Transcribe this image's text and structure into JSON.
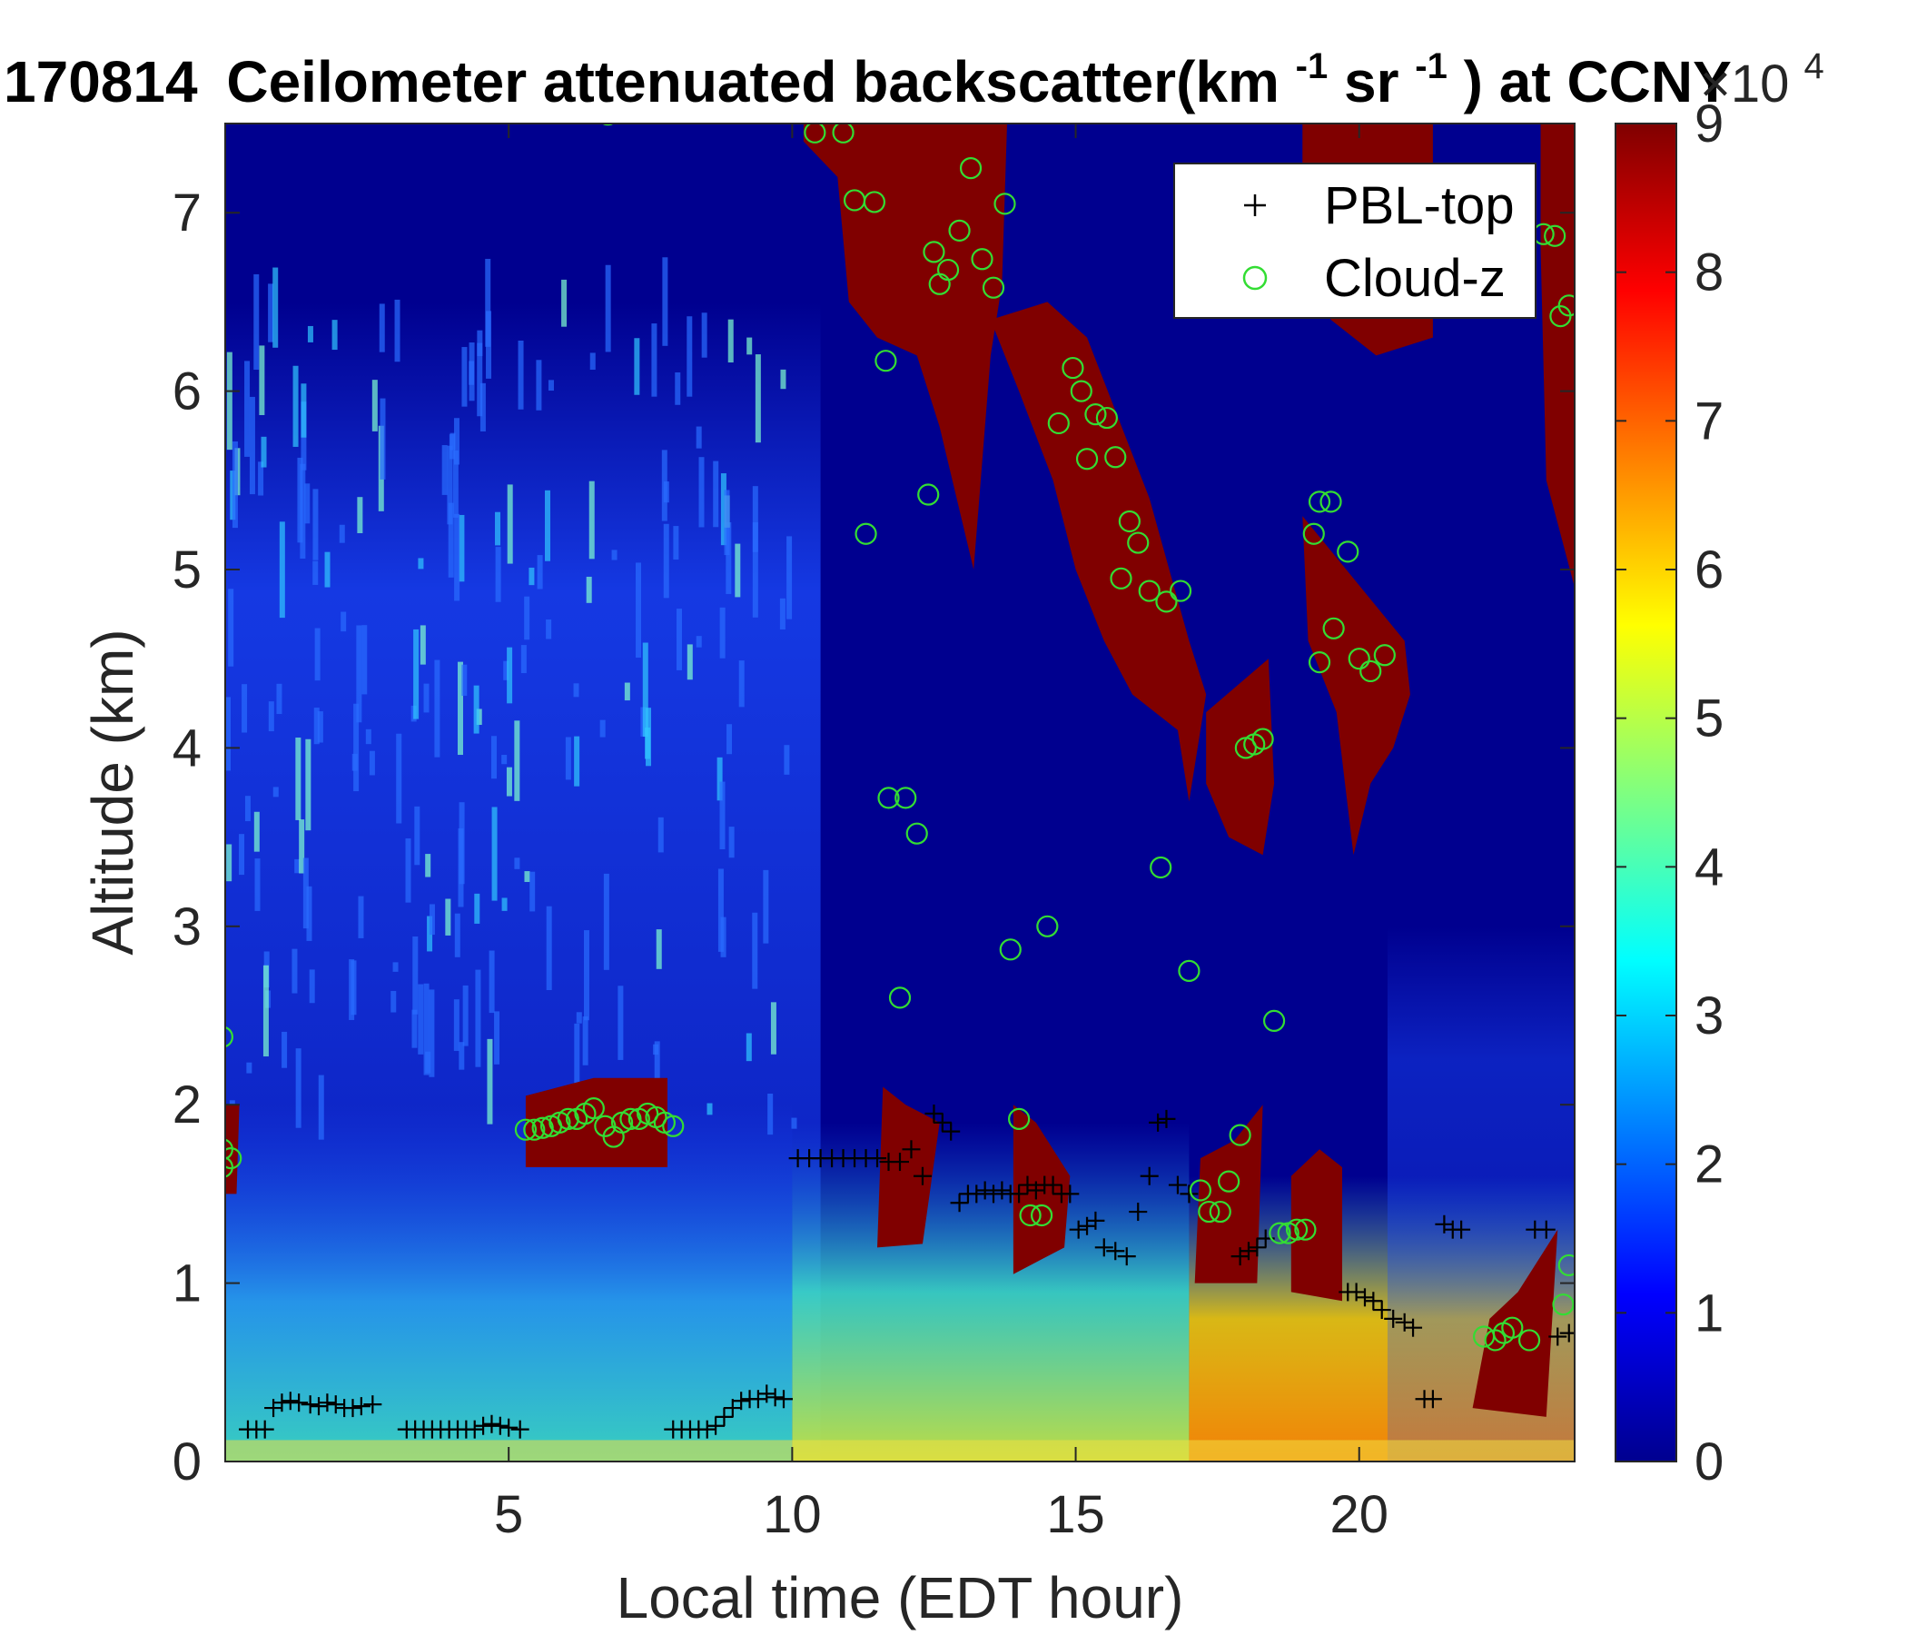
{
  "chart_data": {
    "type": "heatmap",
    "title": {
      "date": "170814",
      "text_main": "Ceilometer attenuated backscatter(km",
      "sup1": "-1",
      "text_mid": "sr",
      "sup2": "-1",
      "text_end": ") at CCNY"
    },
    "xlabel": "Local time (EDT hour)",
    "ylabel": "Altitude (km)",
    "xlim": [
      0,
      23.8
    ],
    "ylim": [
      0,
      7.5
    ],
    "x_ticks": [
      5,
      10,
      15,
      20
    ],
    "y_ticks": [
      0,
      1,
      2,
      3,
      4,
      5,
      6,
      7
    ],
    "colorbar": {
      "range": [
        0,
        9
      ],
      "ticks": [
        0,
        1,
        2,
        3,
        4,
        5,
        6,
        7,
        8,
        9
      ],
      "multiplier_base": "×10",
      "multiplier_exp": "4",
      "colormap": "jet"
    },
    "colors": {
      "background": "#00008f",
      "saturated": "#800000",
      "pbl_marker": "#000000",
      "cloud_marker": "#33dd33"
    },
    "legend": {
      "placement": "top-right",
      "entries": [
        {
          "label": "PBL-top",
          "marker": "+"
        },
        {
          "label": "Cloud-z",
          "marker": "o"
        }
      ]
    },
    "series": [
      {
        "name": "PBL-top",
        "marker": "plus",
        "points": [
          [
            0.4,
            0.18
          ],
          [
            0.55,
            0.18
          ],
          [
            0.7,
            0.18
          ],
          [
            0.85,
            0.3
          ],
          [
            1.0,
            0.33
          ],
          [
            1.15,
            0.34
          ],
          [
            1.3,
            0.33
          ],
          [
            1.5,
            0.32
          ],
          [
            1.65,
            0.31
          ],
          [
            1.8,
            0.33
          ],
          [
            1.95,
            0.32
          ],
          [
            2.1,
            0.3
          ],
          [
            2.25,
            0.3
          ],
          [
            2.4,
            0.31
          ],
          [
            2.6,
            0.32
          ],
          [
            3.2,
            0.18
          ],
          [
            3.35,
            0.18
          ],
          [
            3.5,
            0.18
          ],
          [
            3.65,
            0.18
          ],
          [
            3.8,
            0.18
          ],
          [
            3.95,
            0.18
          ],
          [
            4.1,
            0.18
          ],
          [
            4.25,
            0.18
          ],
          [
            4.4,
            0.18
          ],
          [
            4.55,
            0.2
          ],
          [
            4.7,
            0.21
          ],
          [
            4.85,
            0.2
          ],
          [
            5.0,
            0.19
          ],
          [
            5.2,
            0.18
          ],
          [
            7.9,
            0.18
          ],
          [
            8.05,
            0.18
          ],
          [
            8.2,
            0.18
          ],
          [
            8.35,
            0.18
          ],
          [
            8.5,
            0.18
          ],
          [
            8.65,
            0.2
          ],
          [
            8.8,
            0.25
          ],
          [
            8.95,
            0.3
          ],
          [
            9.1,
            0.34
          ],
          [
            9.25,
            0.35
          ],
          [
            9.4,
            0.35
          ],
          [
            9.55,
            0.38
          ],
          [
            9.7,
            0.36
          ],
          [
            9.85,
            0.35
          ],
          [
            10.1,
            1.7
          ],
          [
            10.3,
            1.7
          ],
          [
            10.5,
            1.7
          ],
          [
            10.7,
            1.7
          ],
          [
            10.9,
            1.7
          ],
          [
            11.1,
            1.7
          ],
          [
            11.3,
            1.7
          ],
          [
            11.5,
            1.7
          ],
          [
            11.7,
            1.68
          ],
          [
            11.9,
            1.68
          ],
          [
            12.1,
            1.75
          ],
          [
            12.3,
            1.6
          ],
          [
            12.5,
            1.95
          ],
          [
            12.65,
            1.9
          ],
          [
            12.8,
            1.85
          ],
          [
            12.95,
            1.45
          ],
          [
            13.1,
            1.5
          ],
          [
            13.25,
            1.5
          ],
          [
            13.4,
            1.52
          ],
          [
            13.55,
            1.5
          ],
          [
            13.7,
            1.52
          ],
          [
            13.85,
            1.5
          ],
          [
            14.0,
            1.5
          ],
          [
            14.15,
            1.55
          ],
          [
            14.3,
            1.52
          ],
          [
            14.45,
            1.55
          ],
          [
            14.6,
            1.55
          ],
          [
            14.75,
            1.5
          ],
          [
            14.9,
            1.5
          ],
          [
            15.05,
            1.3
          ],
          [
            15.2,
            1.32
          ],
          [
            15.35,
            1.35
          ],
          [
            15.5,
            1.2
          ],
          [
            15.7,
            1.18
          ],
          [
            15.9,
            1.15
          ],
          [
            16.1,
            1.4
          ],
          [
            16.3,
            1.6
          ],
          [
            16.45,
            1.9
          ],
          [
            16.6,
            1.92
          ],
          [
            16.8,
            1.55
          ],
          [
            17.0,
            1.5
          ],
          [
            17.9,
            1.15
          ],
          [
            18.05,
            1.18
          ],
          [
            18.2,
            1.2
          ],
          [
            18.35,
            1.25
          ],
          [
            19.8,
            0.95
          ],
          [
            19.95,
            0.95
          ],
          [
            20.1,
            0.92
          ],
          [
            20.25,
            0.9
          ],
          [
            20.4,
            0.85
          ],
          [
            20.6,
            0.8
          ],
          [
            20.8,
            0.78
          ],
          [
            20.95,
            0.75
          ],
          [
            21.15,
            0.35
          ],
          [
            21.3,
            0.35
          ],
          [
            21.5,
            1.33
          ],
          [
            21.65,
            1.3
          ],
          [
            21.8,
            1.3
          ],
          [
            23.1,
            1.3
          ],
          [
            23.3,
            1.3
          ],
          [
            23.5,
            0.7
          ],
          [
            23.7,
            0.72
          ]
        ]
      },
      {
        "name": "Cloud-z",
        "marker": "circle",
        "points": [
          [
            -0.05,
            1.75
          ],
          [
            0.1,
            1.7
          ],
          [
            -0.05,
            1.65
          ],
          [
            -0.05,
            2.38
          ],
          [
            5.3,
            1.86
          ],
          [
            5.45,
            1.86
          ],
          [
            5.6,
            1.87
          ],
          [
            5.75,
            1.88
          ],
          [
            5.9,
            1.9
          ],
          [
            6.05,
            1.92
          ],
          [
            6.2,
            1.92
          ],
          [
            6.35,
            1.95
          ],
          [
            6.5,
            1.98
          ],
          [
            6.7,
            1.88
          ],
          [
            6.85,
            1.82
          ],
          [
            7.0,
            1.9
          ],
          [
            7.15,
            1.92
          ],
          [
            7.3,
            1.92
          ],
          [
            7.45,
            1.95
          ],
          [
            7.6,
            1.93
          ],
          [
            7.75,
            1.9
          ],
          [
            7.9,
            1.88
          ],
          [
            6.75,
            7.55
          ],
          [
            10.4,
            7.45
          ],
          [
            10.9,
            7.45
          ],
          [
            11.1,
            7.07
          ],
          [
            11.45,
            7.06
          ],
          [
            11.65,
            6.17
          ],
          [
            12.5,
            6.78
          ],
          [
            12.75,
            6.68
          ],
          [
            12.95,
            6.9
          ],
          [
            13.15,
            7.25
          ],
          [
            13.35,
            6.74
          ],
          [
            13.55,
            6.58
          ],
          [
            13.75,
            7.05
          ],
          [
            12.6,
            6.6
          ],
          [
            11.3,
            5.2
          ],
          [
            12.4,
            5.42
          ],
          [
            12.0,
            3.72
          ],
          [
            11.7,
            3.72
          ],
          [
            12.2,
            3.52
          ],
          [
            11.9,
            2.6
          ],
          [
            13.85,
            2.87
          ],
          [
            14.5,
            3.0
          ],
          [
            14.0,
            1.92
          ],
          [
            14.2,
            1.38
          ],
          [
            14.4,
            1.38
          ],
          [
            14.7,
            5.82
          ],
          [
            14.95,
            6.13
          ],
          [
            15.1,
            6.0
          ],
          [
            15.35,
            5.87
          ],
          [
            15.55,
            5.85
          ],
          [
            15.2,
            5.62
          ],
          [
            15.7,
            5.63
          ],
          [
            15.95,
            5.27
          ],
          [
            16.1,
            5.15
          ],
          [
            15.8,
            4.95
          ],
          [
            16.3,
            4.88
          ],
          [
            16.6,
            4.82
          ],
          [
            16.85,
            4.88
          ],
          [
            16.5,
            3.33
          ],
          [
            17.0,
            2.75
          ],
          [
            17.2,
            1.52
          ],
          [
            17.35,
            1.4
          ],
          [
            17.55,
            1.4
          ],
          [
            17.7,
            1.57
          ],
          [
            17.9,
            1.83
          ],
          [
            18.0,
            4.0
          ],
          [
            18.15,
            4.02
          ],
          [
            18.3,
            4.05
          ],
          [
            18.5,
            2.47
          ],
          [
            18.6,
            1.28
          ],
          [
            18.75,
            1.28
          ],
          [
            18.9,
            1.3
          ],
          [
            19.05,
            1.3
          ],
          [
            19.3,
            5.38
          ],
          [
            19.5,
            5.38
          ],
          [
            19.2,
            5.2
          ],
          [
            19.8,
            5.1
          ],
          [
            19.55,
            4.67
          ],
          [
            19.3,
            4.48
          ],
          [
            20.0,
            4.5
          ],
          [
            20.2,
            4.43
          ],
          [
            20.45,
            4.52
          ],
          [
            22.2,
            0.7
          ],
          [
            22.4,
            0.68
          ],
          [
            22.55,
            0.72
          ],
          [
            22.7,
            0.75
          ],
          [
            23.0,
            0.68
          ],
          [
            23.25,
            6.88
          ],
          [
            23.45,
            6.87
          ],
          [
            23.55,
            6.42
          ],
          [
            23.7,
            6.48
          ],
          [
            23.7,
            1.1
          ],
          [
            23.6,
            0.88
          ]
        ]
      }
    ]
  }
}
